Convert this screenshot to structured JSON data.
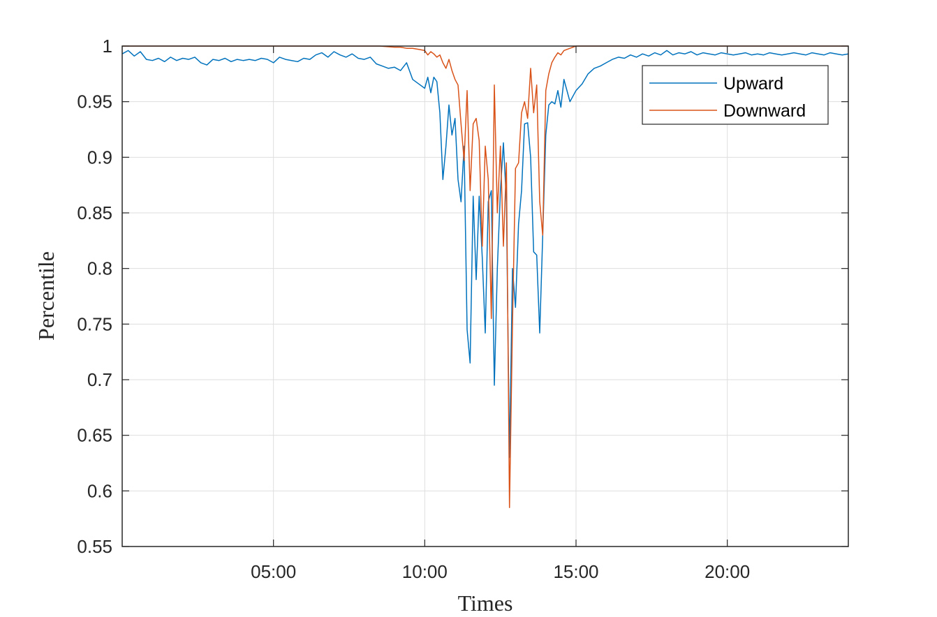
{
  "chart_data": {
    "type": "line",
    "title": "",
    "xlabel": "Times",
    "ylabel": "Percentile",
    "x_tick_labels": [
      "05:00",
      "10:00",
      "15:00",
      "20:00"
    ],
    "x_tick_hours": [
      5,
      10,
      15,
      20
    ],
    "xlim_hours": [
      0,
      24
    ],
    "y_tick_labels": [
      "0.55",
      "0.6",
      "0.65",
      "0.7",
      "0.75",
      "0.8",
      "0.85",
      "0.9",
      "0.95",
      "1"
    ],
    "y_ticks": [
      0.55,
      0.6,
      0.65,
      0.7,
      0.75,
      0.8,
      0.85,
      0.9,
      0.95,
      1.0
    ],
    "ylim": [
      0.55,
      1.0
    ],
    "grid": true,
    "legend_position": "top-right",
    "colors": {
      "Upward": "#0072BD",
      "Downward": "#D95319"
    },
    "series": [
      {
        "name": "Upward",
        "x": [
          0.0,
          0.2,
          0.4,
          0.6,
          0.8,
          1.0,
          1.2,
          1.4,
          1.6,
          1.8,
          2.0,
          2.2,
          2.4,
          2.6,
          2.8,
          3.0,
          3.2,
          3.4,
          3.6,
          3.8,
          4.0,
          4.2,
          4.4,
          4.6,
          4.8,
          5.0,
          5.2,
          5.4,
          5.6,
          5.8,
          6.0,
          6.2,
          6.4,
          6.6,
          6.8,
          7.0,
          7.2,
          7.4,
          7.6,
          7.8,
          8.0,
          8.2,
          8.4,
          8.6,
          8.8,
          9.0,
          9.2,
          9.4,
          9.6,
          9.8,
          10.0,
          10.1,
          10.2,
          10.3,
          10.4,
          10.5,
          10.6,
          10.7,
          10.8,
          10.9,
          11.0,
          11.1,
          11.2,
          11.3,
          11.4,
          11.5,
          11.6,
          11.7,
          11.8,
          11.9,
          12.0,
          12.1,
          12.2,
          12.3,
          12.4,
          12.5,
          12.6,
          12.7,
          12.8,
          12.9,
          13.0,
          13.1,
          13.2,
          13.3,
          13.4,
          13.5,
          13.6,
          13.7,
          13.8,
          13.9,
          14.0,
          14.1,
          14.2,
          14.3,
          14.4,
          14.5,
          14.6,
          14.8,
          15.0,
          15.2,
          15.4,
          15.6,
          15.8,
          16.0,
          16.2,
          16.4,
          16.6,
          16.8,
          17.0,
          17.2,
          17.4,
          17.6,
          17.8,
          18.0,
          18.2,
          18.4,
          18.6,
          18.8,
          19.0,
          19.2,
          19.4,
          19.6,
          19.8,
          20.0,
          20.2,
          20.4,
          20.6,
          20.8,
          21.0,
          21.2,
          21.4,
          21.6,
          21.8,
          22.0,
          22.2,
          22.4,
          22.6,
          22.8,
          23.0,
          23.2,
          23.4,
          23.6,
          23.8,
          24.0
        ],
        "values": [
          0.993,
          0.996,
          0.991,
          0.995,
          0.988,
          0.987,
          0.989,
          0.986,
          0.99,
          0.987,
          0.989,
          0.988,
          0.99,
          0.985,
          0.983,
          0.988,
          0.987,
          0.989,
          0.986,
          0.988,
          0.987,
          0.988,
          0.987,
          0.989,
          0.988,
          0.985,
          0.99,
          0.988,
          0.987,
          0.986,
          0.989,
          0.988,
          0.992,
          0.994,
          0.99,
          0.995,
          0.992,
          0.99,
          0.993,
          0.989,
          0.988,
          0.99,
          0.984,
          0.982,
          0.98,
          0.981,
          0.978,
          0.985,
          0.97,
          0.966,
          0.962,
          0.972,
          0.958,
          0.972,
          0.968,
          0.94,
          0.88,
          0.91,
          0.947,
          0.92,
          0.935,
          0.88,
          0.86,
          0.91,
          0.745,
          0.715,
          0.865,
          0.79,
          0.865,
          0.81,
          0.742,
          0.86,
          0.87,
          0.695,
          0.8,
          0.87,
          0.913,
          0.86,
          0.63,
          0.8,
          0.765,
          0.84,
          0.87,
          0.93,
          0.931,
          0.9,
          0.815,
          0.812,
          0.742,
          0.83,
          0.92,
          0.947,
          0.95,
          0.948,
          0.96,
          0.945,
          0.97,
          0.95,
          0.96,
          0.966,
          0.975,
          0.98,
          0.982,
          0.985,
          0.988,
          0.99,
          0.989,
          0.992,
          0.99,
          0.993,
          0.991,
          0.994,
          0.992,
          0.996,
          0.992,
          0.994,
          0.993,
          0.995,
          0.992,
          0.994,
          0.993,
          0.992,
          0.994,
          0.993,
          0.992,
          0.993,
          0.994,
          0.992,
          0.993,
          0.992,
          0.994,
          0.993,
          0.992,
          0.993,
          0.994,
          0.993,
          0.992,
          0.994,
          0.993,
          0.992,
          0.994,
          0.993,
          0.992,
          0.993
        ]
      },
      {
        "name": "Downward",
        "x": [
          0.0,
          1.0,
          2.0,
          3.0,
          4.0,
          5.0,
          6.0,
          7.0,
          8.0,
          8.5,
          9.0,
          9.2,
          9.4,
          9.6,
          9.8,
          10.0,
          10.1,
          10.2,
          10.3,
          10.4,
          10.5,
          10.6,
          10.7,
          10.8,
          10.9,
          11.0,
          11.1,
          11.2,
          11.3,
          11.4,
          11.5,
          11.6,
          11.7,
          11.8,
          11.9,
          12.0,
          12.1,
          12.2,
          12.3,
          12.4,
          12.5,
          12.6,
          12.7,
          12.8,
          12.9,
          13.0,
          13.1,
          13.2,
          13.3,
          13.4,
          13.5,
          13.6,
          13.7,
          13.8,
          13.9,
          14.0,
          14.1,
          14.2,
          14.3,
          14.4,
          14.5,
          14.6,
          14.8,
          15.0,
          15.5,
          16.0,
          17.0,
          18.0,
          19.0,
          20.0,
          21.0,
          22.0,
          23.0,
          24.0
        ],
        "values": [
          1.0,
          1.0,
          1.0,
          1.0,
          1.0,
          1.0,
          1.0,
          1.0,
          1.0,
          1.0,
          0.999,
          0.999,
          0.998,
          0.998,
          0.997,
          0.996,
          0.992,
          0.995,
          0.993,
          0.99,
          0.992,
          0.985,
          0.98,
          0.988,
          0.978,
          0.97,
          0.965,
          0.93,
          0.897,
          0.96,
          0.87,
          0.93,
          0.935,
          0.915,
          0.82,
          0.91,
          0.88,
          0.755,
          0.965,
          0.85,
          0.91,
          0.82,
          0.895,
          0.585,
          0.75,
          0.89,
          0.895,
          0.94,
          0.95,
          0.935,
          0.98,
          0.94,
          0.965,
          0.86,
          0.83,
          0.96,
          0.975,
          0.985,
          0.99,
          0.994,
          0.992,
          0.996,
          0.998,
          1.0,
          1.0,
          1.0,
          1.0,
          1.0,
          1.0,
          1.0,
          1.0,
          1.0,
          1.0,
          1.0
        ]
      }
    ]
  }
}
